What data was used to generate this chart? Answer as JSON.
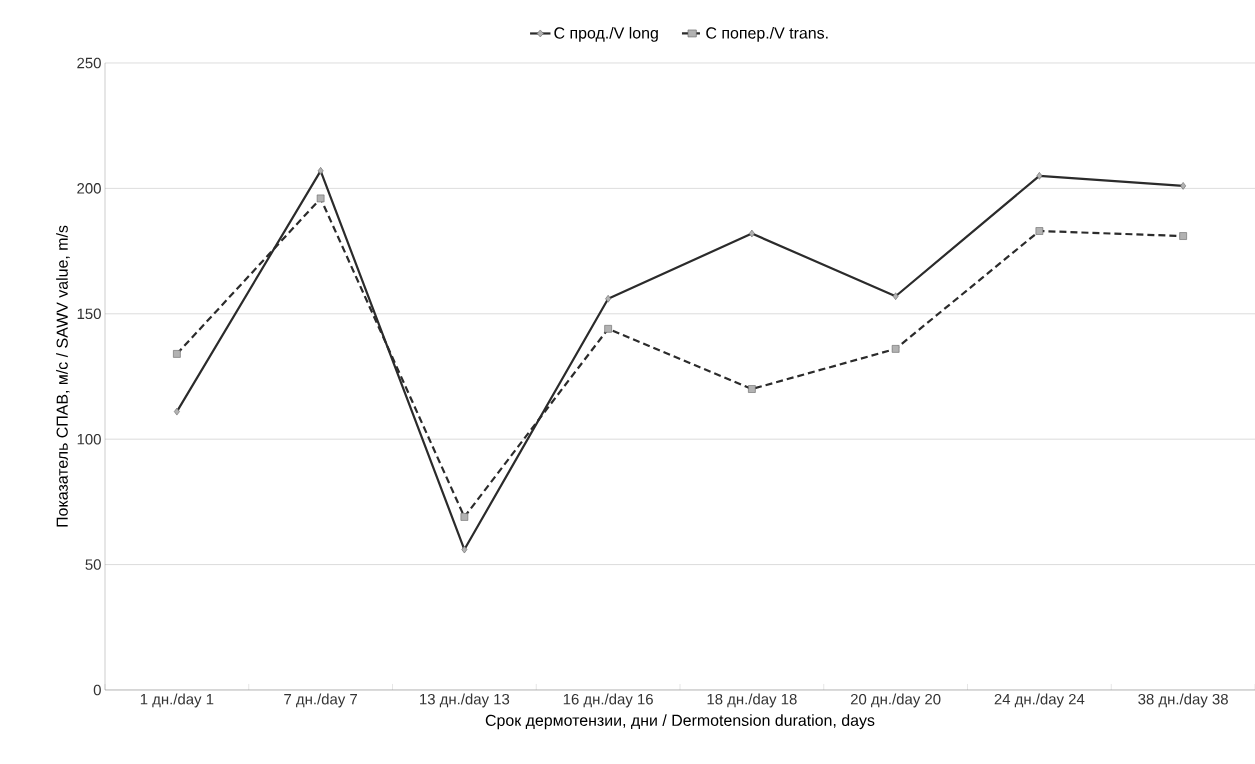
{
  "chart_data": {
    "type": "line",
    "xlabel": "Срок дермотензии, дни / Dermotension duration, days",
    "ylabel": "Показатель СПАВ, м/с / SAWV value, m/s",
    "categories": [
      "1 дн./day 1",
      "7 дн./day 7",
      "13 дн./day 13",
      "16 дн./day 16",
      "18 дн./day 18",
      "20 дн./day 20",
      "24 дн./day 24",
      "38 дн./day 38"
    ],
    "series": [
      {
        "name": "С прод./V long",
        "color": "#2b2b2b",
        "marker": "diamond",
        "line_style": "solid",
        "values": [
          111,
          207,
          56,
          156,
          182,
          157,
          205,
          201
        ]
      },
      {
        "name": "С попер./V trans.",
        "color": "#2b2b2b",
        "marker": "square",
        "line_style": "dashed",
        "values": [
          134,
          196,
          69,
          144,
          120,
          136,
          183,
          181
        ]
      }
    ],
    "ylim": [
      0,
      250
    ],
    "yticks": [
      0,
      50,
      100,
      150,
      200,
      250
    ],
    "grid": "y",
    "legend": "top"
  }
}
